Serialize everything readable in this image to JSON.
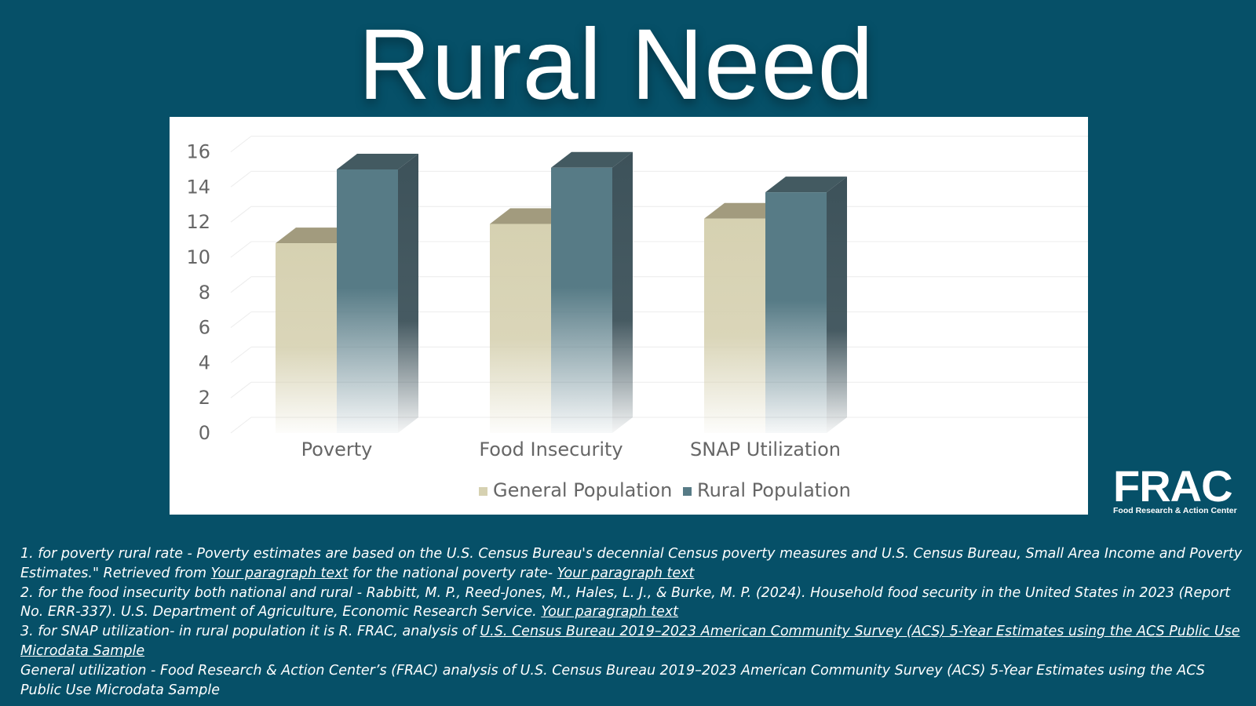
{
  "title": "Rural Need",
  "chart_data": {
    "type": "bar",
    "categories": [
      "Poverty",
      "Food Insecurity",
      "SNAP Utilization"
    ],
    "series": [
      {
        "name": "General Population",
        "values": [
          10.8,
          11.9,
          12.2
        ],
        "color": "#d6d1b1"
      },
      {
        "name": "Rural Population",
        "values": [
          15.0,
          15.1,
          13.7
        ],
        "color": "#577b86"
      }
    ],
    "y_ticks": [
      "0",
      "2",
      "4",
      "6",
      "8",
      "10",
      "12",
      "14",
      "16"
    ],
    "ylim": [
      0,
      16
    ],
    "grid": true,
    "legend_position": "bottom",
    "style": "3d-column"
  },
  "logo": {
    "word": "FRAC",
    "subtitle": "Food Research & Action Center"
  },
  "footnotes": {
    "n1_text_a": "1. for poverty rural rate - Poverty estimates are based on the U.S. Census Bureau's decennial Census poverty measures and U.S. Census Bureau, Small Area Income and Poverty Estimates.\" Retrieved from ",
    "n1_link_a": "Your paragraph text",
    "n1_text_b": " for the national poverty rate- ",
    "n1_link_b": "Your paragraph text",
    "n2_text": "2. for the food insecurity both national and rural - Rabbitt, M. P., Reed-Jones, M., Hales, L. J., & Burke, M. P. (2024). Household food security in the United States in 2023 (Report No. ERR-337). U.S. Department of Agriculture, Economic Research Service. ",
    "n2_link": "Your paragraph text",
    "n3_text": "3. for SNAP utilization- in rural population it is R. FRAC, analysis of ",
    "n3_link": "U.S. Census Bureau 2019–2023 American Community Survey (ACS) 5-Year Estimates using the ACS Public Use Microdata Sample",
    "n4_text": "General utilization - Food Research & Action Center’s (FRAC) analysis of U.S. Census Bureau 2019–2023 American Community Survey (ACS) 5-Year Estimates using the ACS Public Use Microdata Sample"
  }
}
